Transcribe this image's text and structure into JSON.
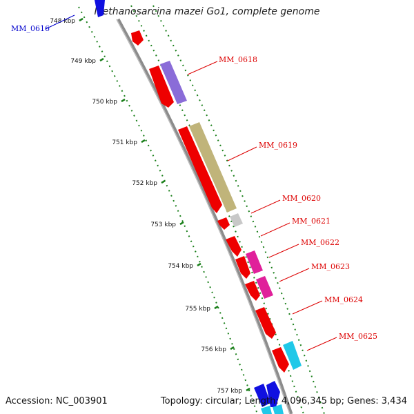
{
  "title": "Methanosarcina mazei Go1, complete genome",
  "footer": {
    "accession": "Accession: NC_003901",
    "summary": "Topology: circular; Length: 4,096,345 bp; Genes: 3,434"
  },
  "colors": {
    "backbone": "#8c8c8c",
    "ticks": "#1a7f1a",
    "label_red": "#dd0000",
    "label_blue": "#0000cc"
  },
  "ticks": [
    "748 kbp",
    "749 kbp",
    "750 kbp",
    "751 kbp",
    "752 kbp",
    "753 kbp",
    "754 kbp",
    "755 kbp",
    "756 kbp",
    "757 kbp"
  ],
  "gene_labels": [
    {
      "id": "MM_0616",
      "color": "#0000cc"
    },
    {
      "id": "MM_0618",
      "color": "#dd0000"
    },
    {
      "id": "MM_0619",
      "color": "#dd0000"
    },
    {
      "id": "MM_0620",
      "color": "#dd0000"
    },
    {
      "id": "MM_0621",
      "color": "#dd0000"
    },
    {
      "id": "MM_0622",
      "color": "#dd0000"
    },
    {
      "id": "MM_0623",
      "color": "#dd0000"
    },
    {
      "id": "MM_0624",
      "color": "#dd0000"
    },
    {
      "id": "MM_0625",
      "color": "#dd0000"
    }
  ]
}
